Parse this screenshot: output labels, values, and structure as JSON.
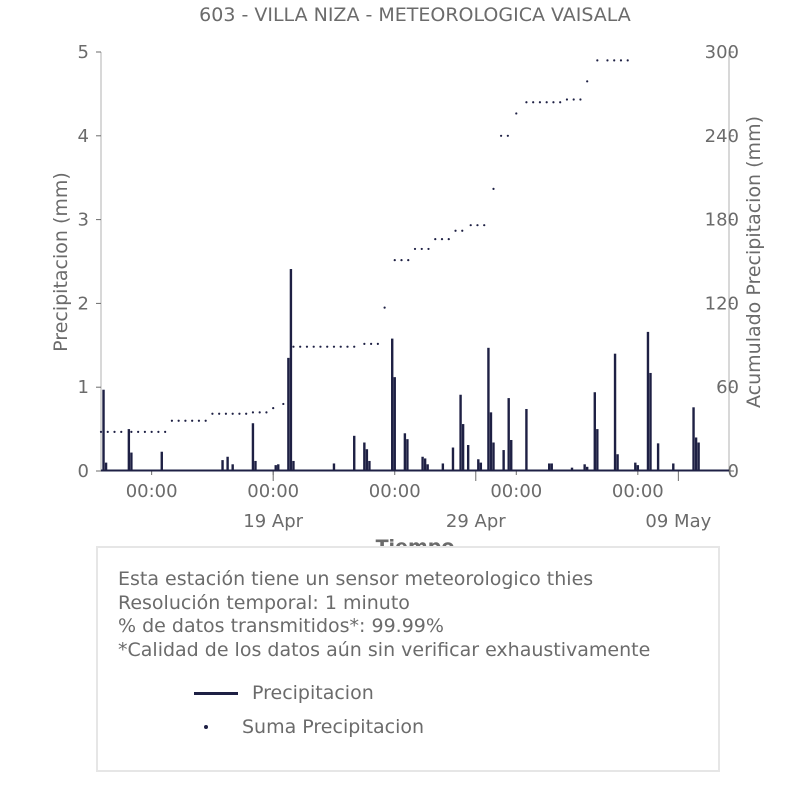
{
  "chart_data": {
    "type": "bar",
    "title": "603 - VILLA NIZA - METEOROLOGICA VAISALA",
    "xlabel": "Tiempo",
    "ylabel": "Precipitacion (mm)",
    "y2label": "Acumulado Precipitacion (mm)",
    "ylim": [
      0,
      5
    ],
    "y2lim": [
      0,
      300
    ],
    "yticks": [
      "0",
      "1",
      "2",
      "3",
      "4",
      "5"
    ],
    "y2ticks": [
      "0",
      "60",
      "120",
      "180",
      "240",
      "300"
    ],
    "xlim": [
      "2024-04-10T12:00",
      "2024-05-11T12:00"
    ],
    "xticks_major": [
      {
        "t": "2024-04-19T00:00",
        "label": "19 Apr"
      },
      {
        "t": "2024-04-29T00:00",
        "label": "29 Apr"
      },
      {
        "t": "2024-05-09T00:00",
        "label": "09 May"
      }
    ],
    "xticks_minor": [
      {
        "t": "2024-04-13T00:00",
        "label": "00:00"
      },
      {
        "t": "2024-04-19T00:00",
        "label": "00:00"
      },
      {
        "t": "2024-04-25T00:00",
        "label": "00:00"
      },
      {
        "t": "2024-05-01T00:00",
        "label": "00:00"
      },
      {
        "t": "2024-05-07T00:00",
        "label": "00:00"
      }
    ],
    "grid": false,
    "series": [
      {
        "name": "Precipitacion",
        "kind": "bar",
        "color": "#1e2044",
        "x": [
          "2024-04-10T15:00",
          "2024-04-10T18:00",
          "2024-04-11T21:00",
          "2024-04-12T00:00",
          "2024-04-13T12:00",
          "2024-04-16T12:00",
          "2024-04-16T18:00",
          "2024-04-17T00:00",
          "2024-04-18T00:00",
          "2024-04-18T03:00",
          "2024-04-19T03:00",
          "2024-04-19T06:00",
          "2024-04-19T18:00",
          "2024-04-19T21:00",
          "2024-04-20T00:00",
          "2024-04-22T00:00",
          "2024-04-23T00:00",
          "2024-04-23T12:00",
          "2024-04-23T15:00",
          "2024-04-23T18:00",
          "2024-04-24T21:00",
          "2024-04-25T00:00",
          "2024-04-25T12:00",
          "2024-04-25T15:00",
          "2024-04-26T09:00",
          "2024-04-26T12:00",
          "2024-04-26T15:00",
          "2024-04-27T09:00",
          "2024-04-27T21:00",
          "2024-04-28T06:00",
          "2024-04-28T09:00",
          "2024-04-28T15:00",
          "2024-04-29T03:00",
          "2024-04-29T06:00",
          "2024-04-29T15:00",
          "2024-04-29T18:00",
          "2024-04-29T21:00",
          "2024-04-30T09:00",
          "2024-04-30T15:00",
          "2024-04-30T18:00",
          "2024-05-01T12:00",
          "2024-05-02T15:00",
          "2024-05-02T18:00",
          "2024-05-03T18:00",
          "2024-05-04T09:00",
          "2024-05-04T12:00",
          "2024-05-04T21:00",
          "2024-05-05T00:00",
          "2024-05-05T21:00",
          "2024-05-06T00:00",
          "2024-05-06T21:00",
          "2024-05-07T00:00",
          "2024-05-07T12:00",
          "2024-05-07T15:00",
          "2024-05-08T00:00",
          "2024-05-08T18:00",
          "2024-05-09T18:00",
          "2024-05-09T21:00",
          "2024-05-10T00:00"
        ],
        "values": [
          0.97,
          0.1,
          0.5,
          0.22,
          0.23,
          0.13,
          0.17,
          0.08,
          0.57,
          0.12,
          0.07,
          0.08,
          1.35,
          2.41,
          0.12,
          0.09,
          0.42,
          0.34,
          0.26,
          0.12,
          1.58,
          1.12,
          0.45,
          0.38,
          0.17,
          0.15,
          0.08,
          0.09,
          0.28,
          0.91,
          0.56,
          0.31,
          0.14,
          0.1,
          1.47,
          0.7,
          0.34,
          0.25,
          0.87,
          0.37,
          0.74,
          0.09,
          0.09,
          0.04,
          0.08,
          0.05,
          0.94,
          0.5,
          1.4,
          0.2,
          0.1,
          0.07,
          1.66,
          1.17,
          0.33,
          0.09,
          0.76,
          0.4,
          0.34
        ]
      },
      {
        "name": "Suma Precipitacion",
        "kind": "scatter",
        "color": "#1e2044",
        "x": [
          "2024-04-10T12:00",
          "2024-04-12T00:00",
          "2024-04-14T00:00",
          "2024-04-16T00:00",
          "2024-04-17T00:00",
          "2024-04-18T00:00",
          "2024-04-19T00:00",
          "2024-04-19T12:00",
          "2024-04-20T00:00",
          "2024-04-22T00:00",
          "2024-04-23T12:00",
          "2024-04-24T12:00",
          "2024-04-25T00:00",
          "2024-04-26T00:00",
          "2024-04-27T00:00",
          "2024-04-28T00:00",
          "2024-04-28T18:00",
          "2024-04-29T21:00",
          "2024-04-30T06:00",
          "2024-05-01T00:00",
          "2024-05-01T12:00",
          "2024-05-02T12:00",
          "2024-05-03T12:00",
          "2024-05-04T12:00",
          "2024-05-05T00:00",
          "2024-05-05T12:00",
          "2024-05-06T12:00"
        ],
        "values": [
          28,
          28,
          36,
          41,
          41,
          42,
          45,
          48,
          89,
          89,
          91,
          117,
          151,
          159,
          166,
          172,
          176,
          202,
          240,
          256,
          264,
          264,
          266,
          279,
          294,
          294,
          294
        ]
      }
    ]
  },
  "info": {
    "line1": "Esta estación tiene un sensor meteorologico thies",
    "line2": "Resolución temporal: 1 minuto",
    "line3": "% de datos transmitidos*: 99.99%",
    "line4": "*Calidad de los datos aún sin verificar exhaustivamente"
  },
  "legend": {
    "item1": "Precipitacion",
    "item2": "Suma Precipitacion"
  }
}
